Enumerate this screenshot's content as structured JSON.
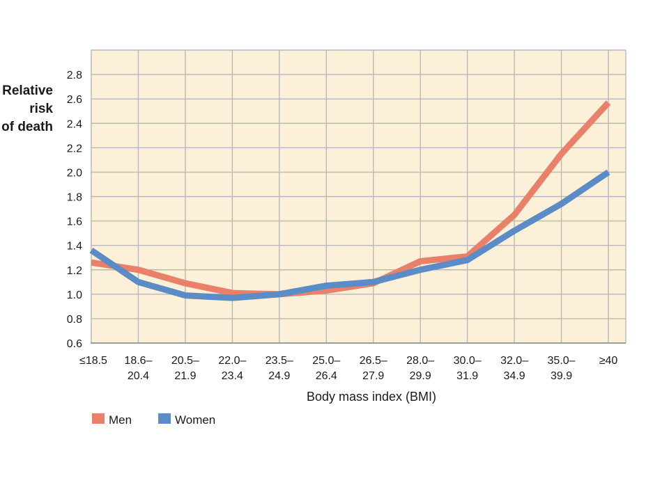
{
  "chart_data": {
    "type": "line",
    "ylabel": [
      "Relative",
      "risk",
      "of death"
    ],
    "xlabel": "Body mass index (BMI)",
    "categories": [
      [
        "≤18.5"
      ],
      [
        "18.6–",
        "20.4"
      ],
      [
        "20.5–",
        "21.9"
      ],
      [
        "22.0–",
        "23.4"
      ],
      [
        "23.5–",
        "24.9"
      ],
      [
        "25.0–",
        "26.4"
      ],
      [
        "26.5–",
        "27.9"
      ],
      [
        "28.0–",
        "29.9"
      ],
      [
        "30.0–",
        "31.9"
      ],
      [
        "32.0–",
        "34.9"
      ],
      [
        "35.0–",
        "39.9"
      ],
      [
        "≥40"
      ]
    ],
    "yticks": [
      "0.6",
      "0.8",
      "1.0",
      "1.2",
      "1.4",
      "1.6",
      "1.8",
      "2.0",
      "2.2",
      "2.4",
      "2.6",
      "2.8"
    ],
    "ylim": [
      0.6,
      3.0
    ],
    "grid": true,
    "legend_position": "bottom-left",
    "series": [
      {
        "name": "Men",
        "color": "#e8806a",
        "values": [
          1.26,
          1.2,
          1.09,
          1.01,
          1.0,
          1.03,
          1.09,
          1.27,
          1.31,
          1.65,
          2.15,
          2.57
        ]
      },
      {
        "name": "Women",
        "color": "#5b8cc6",
        "values": [
          1.36,
          1.1,
          0.99,
          0.97,
          1.0,
          1.07,
          1.1,
          1.2,
          1.28,
          1.52,
          1.74,
          2.0
        ]
      }
    ],
    "plot_background": "#fcf0d9",
    "grid_color": "#b8b8b8"
  }
}
